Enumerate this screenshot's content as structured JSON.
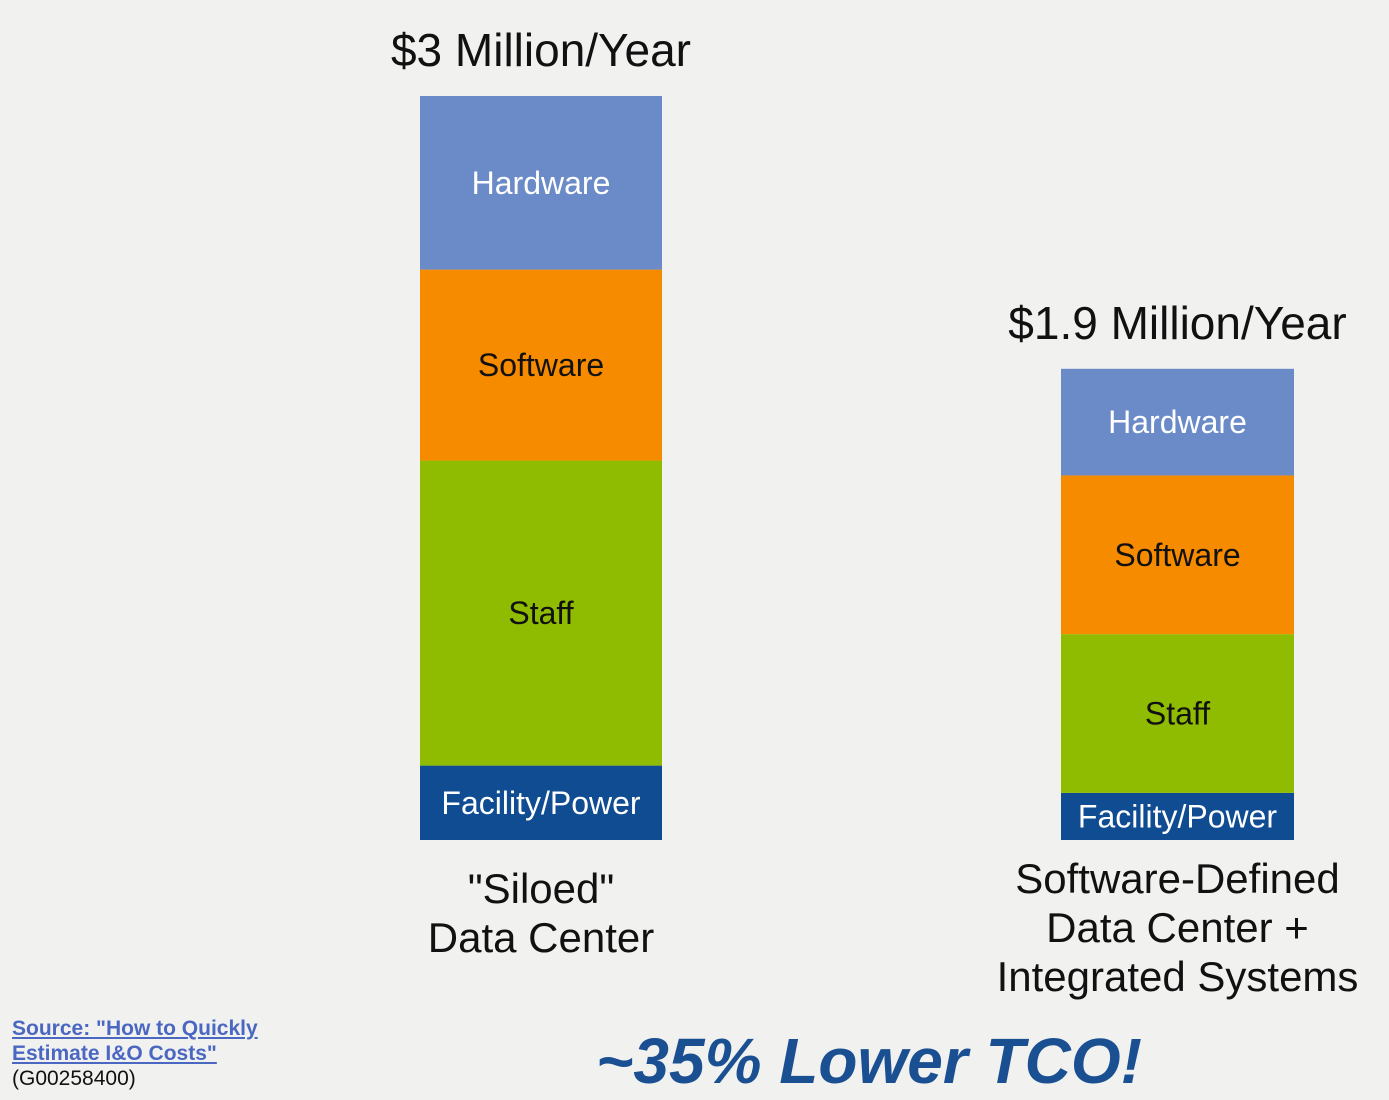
{
  "chart_data": {
    "type": "bar",
    "stacked": true,
    "categories": [
      [
        "\"Siloed\"",
        "Data Center"
      ],
      [
        "Software-Defined",
        "Data Center +",
        "Integrated Systems"
      ]
    ],
    "totals": [
      "$3 Million/Year",
      "$1.9 Million/Year"
    ],
    "total_values": [
      3.0,
      1.9
    ],
    "unit": "Million $/Year",
    "series": [
      {
        "name": "Facility/Power",
        "color": "#0f4c92",
        "text_color": "#ffffff",
        "values": [
          0.3,
          0.19
        ]
      },
      {
        "name": "Staff",
        "color": "#8fbc00",
        "text_color": "#111111",
        "values": [
          1.23,
          0.64
        ]
      },
      {
        "name": "Software",
        "color": "#f78b00",
        "text_color": "#111111",
        "values": [
          0.77,
          0.64
        ]
      },
      {
        "name": "Hardware",
        "color": "#6b8ac8",
        "text_color": "#ffffff",
        "values": [
          0.7,
          0.43
        ]
      }
    ],
    "grid": false,
    "legend": "none"
  },
  "source": {
    "line1": "Source: \"How to Quickly",
    "line2": "Estimate I&O Costs\"",
    "code": "(G00258400)"
  },
  "headline": "~35% Lower TCO!"
}
